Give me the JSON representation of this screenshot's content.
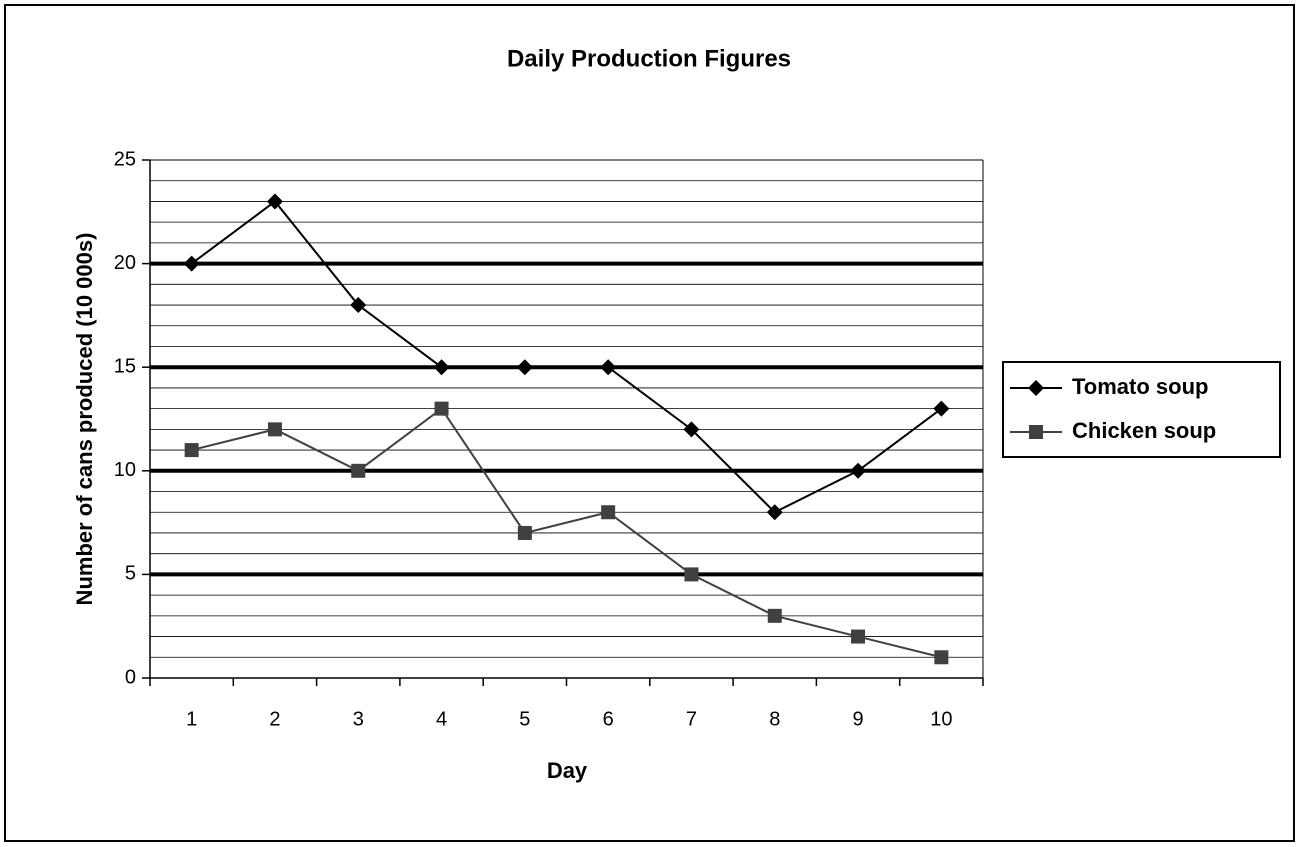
{
  "chart_data": {
    "type": "line",
    "title": "Daily Production Figures",
    "x_label": "Day",
    "y_label": "Number of cans produced (10 000s)",
    "categories": [
      "1",
      "2",
      "3",
      "4",
      "5",
      "6",
      "7",
      "8",
      "9",
      "10"
    ],
    "series": [
      {
        "name": "Tomato soup",
        "color": "#000000",
        "marker": "diamond",
        "values": [
          20,
          23,
          18,
          15,
          15,
          15,
          12,
          8,
          10,
          13
        ]
      },
      {
        "name": "Chicken soup",
        "color": "#404040",
        "marker": "square",
        "values": [
          11,
          12,
          10,
          13,
          7,
          8,
          5,
          3,
          2,
          1
        ]
      }
    ],
    "ylim": [
      0,
      25
    ],
    "yticks": [
      0,
      5,
      10,
      15,
      20,
      25
    ],
    "minor_yticks": [
      1,
      2,
      3,
      4,
      6,
      7,
      8,
      9,
      11,
      12,
      13,
      14,
      16,
      17,
      18,
      19,
      21,
      22,
      23,
      24
    ],
    "grid": true,
    "legend": "right"
  }
}
